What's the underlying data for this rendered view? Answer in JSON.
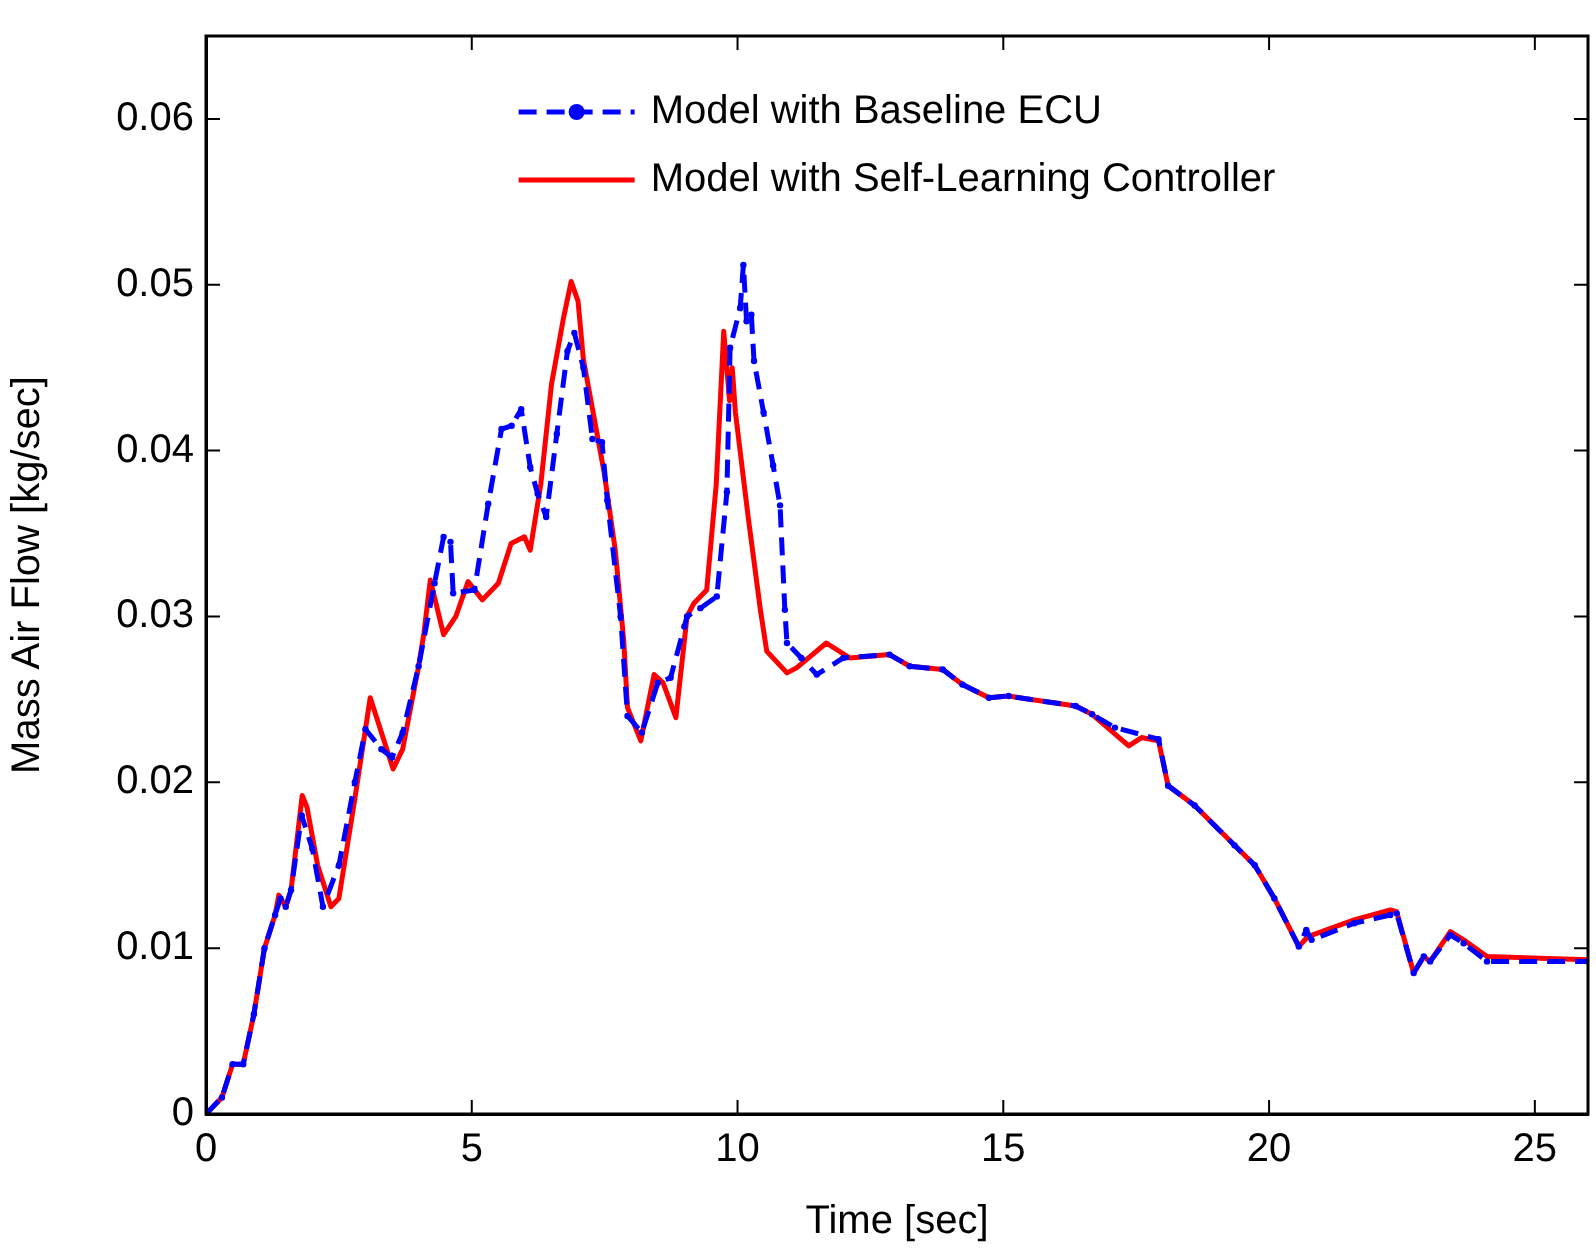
{
  "chart_data": {
    "type": "line",
    "xlabel": "Time [sec]",
    "ylabel": "Mass Air Flow [kg/sec]",
    "xlim": [
      0,
      26
    ],
    "xticks": [
      0,
      5,
      10,
      15,
      20,
      25
    ],
    "ylim": [
      0,
      0.065
    ],
    "yticks": [
      0,
      0.01,
      0.02,
      0.03,
      0.04,
      0.05,
      0.06
    ],
    "grid": false,
    "legend": "top",
    "series": [
      {
        "name": "Model with Baseline ECU",
        "color": "#0000ff",
        "line_style": "dashed",
        "marker": "circle",
        "x": [
          0,
          0.3,
          0.5,
          0.7,
          0.9,
          1.1,
          1.3,
          1.4,
          1.5,
          1.6,
          1.8,
          2.0,
          2.2,
          2.5,
          2.8,
          3.0,
          3.3,
          3.5,
          3.7,
          4.0,
          4.3,
          4.47,
          4.6,
          4.65,
          5.05,
          5.31,
          5.56,
          5.75,
          5.93,
          6.1,
          6.24,
          6.4,
          6.6,
          6.8,
          6.93,
          7.1,
          7.27,
          7.45,
          7.55,
          7.8,
          7.93,
          8.2,
          8.5,
          8.74,
          9.0,
          9.05,
          9.3,
          9.61,
          9.8,
          9.86,
          10.05,
          10.11,
          10.17,
          10.26,
          10.31,
          10.49,
          10.67,
          10.8,
          10.89,
          10.93,
          11.2,
          11.49,
          11.99,
          12.86,
          13.24,
          13.86,
          14.23,
          14.73,
          15.1,
          16.36,
          16.67,
          17.1,
          17.92,
          18.1,
          18.6,
          19.35,
          19.73,
          20.1,
          20.56,
          20.7,
          20.8,
          21.6,
          22.28,
          22.4,
          22.72,
          22.91,
          23.03,
          23.41,
          23.66,
          24.1,
          26
        ],
        "values": [
          0,
          0.001,
          0.003,
          0.003,
          0.006,
          0.01,
          0.012,
          0.013,
          0.0125,
          0.0135,
          0.018,
          0.016,
          0.0125,
          0.015,
          0.02,
          0.0232,
          0.022,
          0.0215,
          0.023,
          0.027,
          0.032,
          0.0348,
          0.0345,
          0.0314,
          0.0316,
          0.0368,
          0.0413,
          0.0415,
          0.0425,
          0.039,
          0.0374,
          0.036,
          0.041,
          0.046,
          0.0471,
          0.045,
          0.0407,
          0.0405,
          0.037,
          0.03,
          0.024,
          0.023,
          0.026,
          0.0263,
          0.0294,
          0.03,
          0.0305,
          0.0312,
          0.0375,
          0.0462,
          0.0486,
          0.0512,
          0.0478,
          0.0482,
          0.0454,
          0.0423,
          0.0391,
          0.0367,
          0.0304,
          0.0284,
          0.0275,
          0.0265,
          0.0275,
          0.0277,
          0.027,
          0.0268,
          0.0259,
          0.0251,
          0.0252,
          0.0246,
          0.0241,
          0.0233,
          0.0226,
          0.0198,
          0.0186,
          0.0162,
          0.015,
          0.013,
          0.0101,
          0.0111,
          0.0105,
          0.0115,
          0.012,
          0.0121,
          0.0085,
          0.0095,
          0.0092,
          0.0108,
          0.0103,
          0.0092,
          0.0092
        ]
      },
      {
        "name": "Model with Self-Learning Controller",
        "color": "#ff0000",
        "line_style": "solid",
        "marker": "none",
        "x": [
          0,
          0.3,
          0.5,
          0.7,
          0.9,
          1.1,
          1.3,
          1.37,
          1.5,
          1.6,
          1.81,
          1.9,
          2.1,
          2.35,
          2.5,
          2.8,
          3.09,
          3.3,
          3.52,
          3.7,
          4.0,
          4.1,
          4.22,
          4.47,
          4.7,
          4.93,
          5.2,
          5.5,
          5.74,
          5.99,
          6.1,
          6.3,
          6.5,
          6.72,
          6.87,
          7.0,
          7.1,
          7.3,
          7.49,
          7.7,
          7.86,
          7.93,
          8.18,
          8.43,
          8.6,
          8.84,
          9.05,
          9.18,
          9.42,
          9.6,
          9.74,
          9.85,
          9.9,
          9.96,
          10.2,
          10.43,
          10.55,
          10.93,
          11.11,
          11.67,
          12.11,
          12.86,
          13.24,
          13.86,
          14.23,
          14.73,
          15.1,
          16.36,
          16.67,
          17.36,
          17.6,
          17.92,
          18.1,
          18.6,
          19.35,
          19.73,
          20.1,
          20.56,
          20.73,
          21.6,
          22.28,
          22.4,
          22.72,
          22.91,
          23.03,
          23.41,
          23.66,
          24.1,
          26
        ],
        "values": [
          0,
          0.001,
          0.003,
          0.003,
          0.006,
          0.01,
          0.012,
          0.0132,
          0.0125,
          0.0135,
          0.0192,
          0.0185,
          0.015,
          0.0125,
          0.013,
          0.019,
          0.0251,
          0.023,
          0.0208,
          0.022,
          0.027,
          0.029,
          0.0322,
          0.0289,
          0.03,
          0.0321,
          0.031,
          0.032,
          0.0344,
          0.0348,
          0.034,
          0.038,
          0.044,
          0.0479,
          0.0502,
          0.049,
          0.0455,
          0.042,
          0.0387,
          0.034,
          0.0285,
          0.0245,
          0.0225,
          0.0265,
          0.026,
          0.0239,
          0.03,
          0.0308,
          0.0316,
          0.038,
          0.0472,
          0.043,
          0.045,
          0.0423,
          0.036,
          0.0304,
          0.0279,
          0.0266,
          0.0269,
          0.0284,
          0.0275,
          0.0277,
          0.027,
          0.0268,
          0.0259,
          0.0251,
          0.0252,
          0.0246,
          0.0241,
          0.0222,
          0.0227,
          0.0225,
          0.0198,
          0.0186,
          0.0162,
          0.015,
          0.013,
          0.0101,
          0.0107,
          0.0117,
          0.0123,
          0.0122,
          0.0085,
          0.0095,
          0.0092,
          0.011,
          0.0105,
          0.0095,
          0.0093
        ]
      }
    ]
  }
}
